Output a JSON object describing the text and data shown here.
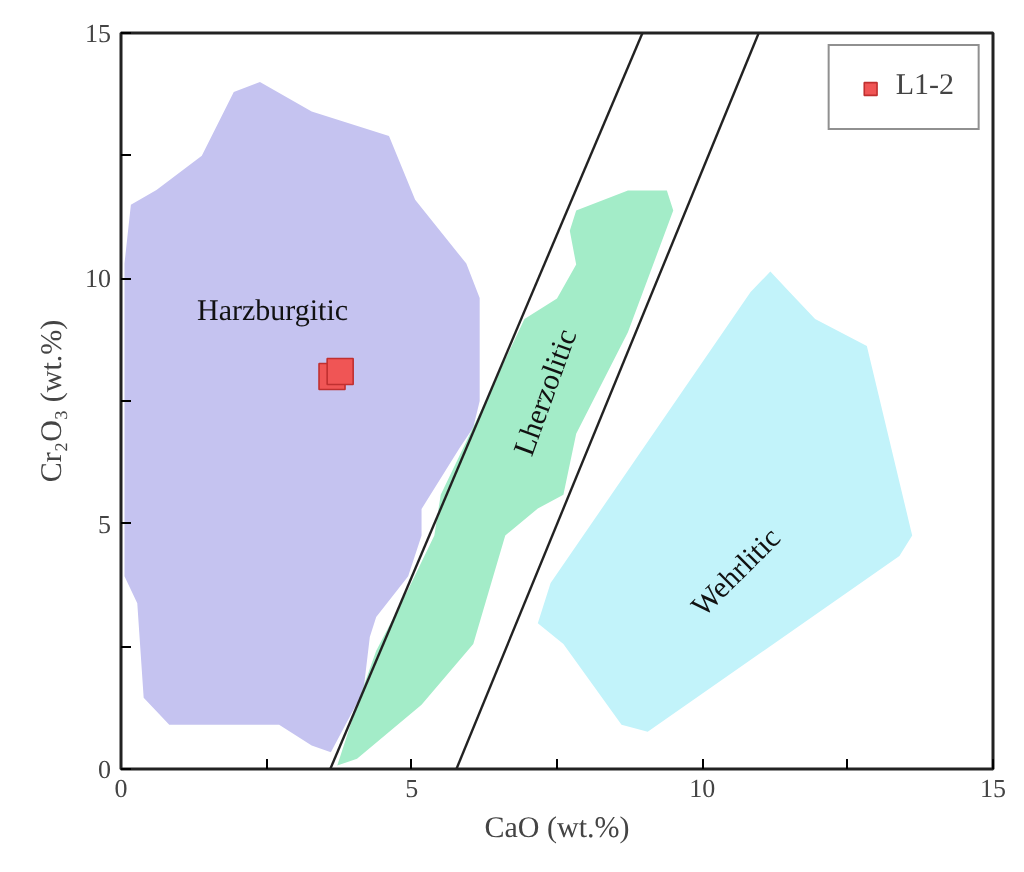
{
  "chart_data": {
    "type": "scatter",
    "xlabel": "CaO (wt.%)",
    "ylabel": "Cr₂O₃ (wt.%)",
    "xlim": [
      0,
      15
    ],
    "ylim": [
      0,
      15
    ],
    "xticks": [
      0,
      {
        "value": 2.5,
        "label": null
      },
      5,
      {
        "value": 7.5,
        "label": null
      },
      10,
      {
        "value": 12.5,
        "label": null
      },
      15
    ],
    "yticks": [
      0,
      {
        "value": 2.5,
        "label": null
      },
      5,
      {
        "value": 7.5,
        "label": null
      },
      10,
      {
        "value": 12.5,
        "label": null
      },
      15
    ],
    "grid": false,
    "legend": "top right",
    "series": [
      {
        "type": "area",
        "color": "#c5c3f0",
        "x": [
          0.17,
          0.61,
          1.39,
          1.94,
          2.39,
          3.28,
          4.61,
          5.06,
          5.94,
          6.17,
          6.17,
          6.06,
          5.83,
          5.17,
          5.17,
          4.94,
          4.39,
          4.28,
          4.17,
          3.61,
          3.28,
          2.72,
          0.83,
          0.39,
          0.28,
          0.06,
          0.06
        ],
        "values": [
          11.5,
          11.8,
          12.5,
          13.8,
          14.0,
          13.4,
          12.9,
          11.6,
          10.3,
          9.6,
          7.5,
          6.96,
          6.55,
          5.3,
          4.76,
          3.93,
          3.1,
          2.69,
          1.59,
          0.34,
          0.48,
          0.9,
          0.9,
          1.45,
          3.38,
          3.93,
          10.3
        ]
      },
      {
        "type": "area",
        "color": "#a3ecc8",
        "x": [
          3.72,
          4.06,
          5.17,
          6.06,
          6.61,
          7.17,
          7.61,
          7.83,
          8.72,
          9.5,
          9.39,
          8.72,
          7.83,
          7.72,
          7.83,
          7.5,
          6.94,
          6.5,
          6.06,
          5.5,
          5.39,
          4.94,
          4.39,
          4.06
        ],
        "values": [
          0.07,
          0.21,
          1.31,
          2.55,
          4.76,
          5.31,
          5.59,
          6.83,
          8.9,
          11.38,
          11.79,
          11.79,
          11.38,
          10.97,
          10.28,
          9.59,
          9.17,
          8.07,
          6.97,
          5.59,
          4.76,
          3.66,
          2.41,
          1.31
        ]
      },
      {
        "type": "area",
        "color": "#c2f3fa",
        "x": [
          11.17,
          11.5,
          11.94,
          12.83,
          13.61,
          13.39,
          9.06,
          8.61,
          7.61,
          7.17,
          7.39,
          10.83
        ],
        "values": [
          10.14,
          9.72,
          9.17,
          8.62,
          4.76,
          4.34,
          0.76,
          0.9,
          2.55,
          2.97,
          3.79,
          9.72
        ]
      },
      {
        "type": "line",
        "color": "#222222",
        "x": [
          3.6,
          8.97
        ],
        "values": [
          0,
          15
        ]
      },
      {
        "type": "line",
        "color": "#222222",
        "x": [
          5.77,
          10.97
        ],
        "values": [
          0,
          15
        ]
      },
      {
        "name": "L1-2",
        "marker": "square",
        "color": "#f05555",
        "x": [
          3.63,
          3.77
        ],
        "values": [
          8.0,
          8.1
        ]
      }
    ],
    "annotations": [
      "Harzburgitic",
      "Lherzolitic",
      "Wehrlitic"
    ]
  }
}
